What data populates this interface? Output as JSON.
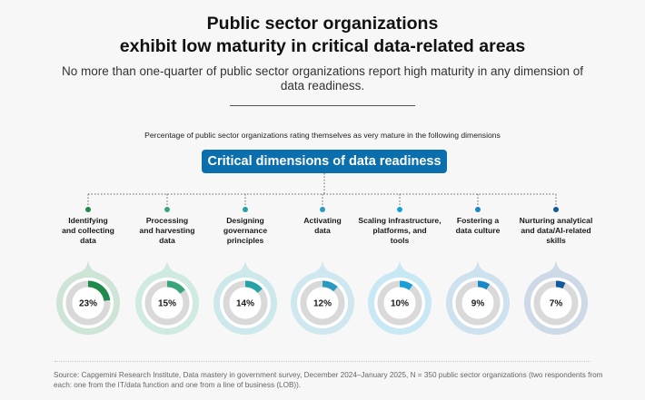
{
  "title_line1": "Public sector organizations",
  "title_line2": "exhibit low maturity in critical data-related areas",
  "subtitle": "No more than one-quarter of public sector organizations report high maturity in any dimension of data readiness.",
  "caption": "Percentage of public sector organizations rating themselves as very mature in the following dimensions",
  "source": "Source: Capgemini Research Institute, Data mastery in government survey, December 2024–January 2025, N = 350 public sector organizations (two respondents from each: one from the IT/data function and one from a line of business (LOB)).",
  "chart_data": {
    "type": "pie",
    "title": "Critical dimensions of data readiness",
    "unit": "%",
    "categories": [
      "Identifying and collecting data",
      "Processing and harvesting data",
      "Designing governance principles",
      "Activating data",
      "Scaling infrastructure, platforms, and tools",
      "Fostering a data culture",
      "Nurturing analytical and data/AI-related skills"
    ],
    "values": [
      23,
      15,
      14,
      12,
      10,
      9,
      7
    ],
    "value_labels": [
      "23%",
      "15%",
      "14%",
      "12%",
      "10%",
      "9%",
      "7%"
    ],
    "label_lines": [
      [
        "Identifying",
        "and collecting",
        "data"
      ],
      [
        "Processing",
        "and harvesting",
        "data"
      ],
      [
        "Designing",
        "governance",
        "principles"
      ],
      [
        "Activating",
        "data"
      ],
      [
        "Scaling infrastructure,",
        "platforms, and",
        "tools"
      ],
      [
        "Fostering a",
        "data culture"
      ],
      [
        "Nurturing analytical",
        "and data/AI-related",
        "skills"
      ]
    ],
    "colors": [
      "#1f8a4c",
      "#3aa57a",
      "#26a3a8",
      "#2a9bc0",
      "#1aa0d6",
      "#1a87c8",
      "#0f5a9e"
    ],
    "halo_colors": [
      "#cde4d6",
      "#cfeae0",
      "#cde8ea",
      "#cfe7ef",
      "#c8e8f4",
      "#cde1ee",
      "#cdd9e6"
    ],
    "track_color": "#d9d9d9"
  }
}
